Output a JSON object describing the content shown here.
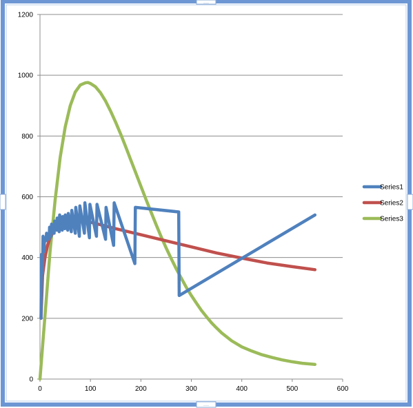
{
  "chart_data": {
    "type": "line",
    "title": "",
    "xlabel": "",
    "ylabel": "",
    "xlim": [
      0,
      600
    ],
    "ylim": [
      0,
      1200
    ],
    "x_ticks": [
      0,
      100,
      200,
      300,
      400,
      500,
      600
    ],
    "y_ticks": [
      0,
      200,
      400,
      600,
      800,
      1000,
      1200
    ],
    "grid": "horizontal",
    "legend_position": "right",
    "series": [
      {
        "name": "Series1",
        "color": "#4F81BD",
        "x": [
          2,
          3,
          5,
          6,
          8,
          9,
          12,
          13,
          18,
          19,
          22,
          23,
          28,
          29,
          33,
          34,
          38,
          39,
          44,
          45,
          49,
          50,
          55,
          56,
          62,
          63,
          70,
          71,
          78,
          79,
          88,
          89,
          98,
          99,
          112,
          113,
          130,
          131,
          146,
          147,
          188,
          189,
          275,
          276,
          545
        ],
        "y": [
          200,
          410,
          350,
          470,
          420,
          465,
          455,
          480,
          460,
          500,
          470,
          510,
          480,
          520,
          490,
          530,
          485,
          540,
          490,
          535,
          495,
          540,
          490,
          545,
          485,
          555,
          480,
          565,
          470,
          570,
          480,
          580,
          465,
          575,
          470,
          575,
          460,
          565,
          440,
          580,
          380,
          565,
          550,
          275,
          540
        ]
      },
      {
        "name": "Series2",
        "color": "#C0504D",
        "x": [
          2,
          5,
          10,
          15,
          20,
          30,
          40,
          50,
          60,
          70,
          80,
          100,
          120,
          150,
          200,
          250,
          300,
          350,
          400,
          450,
          500,
          545
        ],
        "y": [
          200,
          340,
          400,
          440,
          465,
          495,
          510,
          518,
          522,
          523,
          522,
          516,
          508,
          495,
          475,
          455,
          435,
          415,
          398,
          382,
          370,
          360
        ]
      },
      {
        "name": "Series3",
        "color": "#9BBB59",
        "x": [
          0,
          10,
          20,
          30,
          40,
          50,
          60,
          70,
          80,
          90,
          95,
          100,
          110,
          120,
          130,
          140,
          150,
          160,
          170,
          180,
          190,
          200,
          210,
          220,
          230,
          240,
          250,
          260,
          270,
          280,
          290,
          300,
          310,
          320,
          330,
          340,
          350,
          360,
          380,
          400,
          420,
          440,
          460,
          480,
          500,
          520,
          545
        ],
        "y": [
          0,
          210,
          420,
          590,
          730,
          830,
          900,
          945,
          968,
          975,
          976,
          973,
          962,
          942,
          915,
          882,
          845,
          806,
          764,
          721,
          678,
          635,
          592,
          550,
          509,
          469,
          432,
          397,
          363,
          332,
          302,
          275,
          250,
          226,
          205,
          185,
          168,
          152,
          126,
          106,
          92,
          80,
          71,
          63,
          57,
          52,
          48
        ]
      }
    ]
  }
}
